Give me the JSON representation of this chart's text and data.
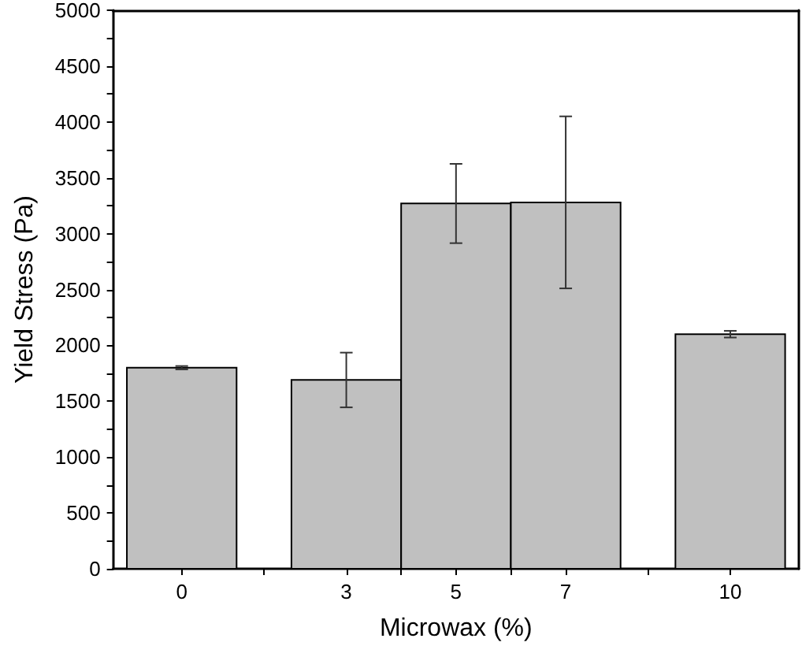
{
  "chart_data": {
    "type": "bar",
    "xlabel": "Microwax (%)",
    "ylabel": "Yield Stress (Pa)",
    "x": [
      0,
      3,
      5,
      7,
      10
    ],
    "series": [
      {
        "color": "#c0c0c0",
        "values": [
          1800,
          1690,
          3270,
          3280,
          2100
        ],
        "errors": [
          15,
          245,
          355,
          770,
          30
        ]
      }
    ],
    "xlim": [
      -1.25,
      11.25
    ],
    "xticks": [
      0,
      {
        "value": 1.5,
        "label": null
      },
      3,
      {
        "value": 4,
        "label": null
      },
      5,
      {
        "value": 6,
        "label": null
      },
      7,
      {
        "value": 8.5,
        "label": null
      },
      10
    ],
    "ylim": [
      0,
      5000
    ],
    "yticks": [
      0,
      {
        "value": 250,
        "label": null
      },
      500,
      {
        "value": 750,
        "label": null
      },
      1000,
      {
        "value": 1250,
        "label": null
      },
      1500,
      {
        "value": 1750,
        "label": null
      },
      2000,
      {
        "value": 2250,
        "label": null
      },
      2500,
      {
        "value": 2750,
        "label": null
      },
      3000,
      {
        "value": 3250,
        "label": null
      },
      3500,
      {
        "value": 3750,
        "label": null
      },
      4000,
      {
        "value": 4250,
        "label": null
      },
      4500,
      {
        "value": 4750,
        "label": null
      },
      5000
    ],
    "grid": false
  }
}
